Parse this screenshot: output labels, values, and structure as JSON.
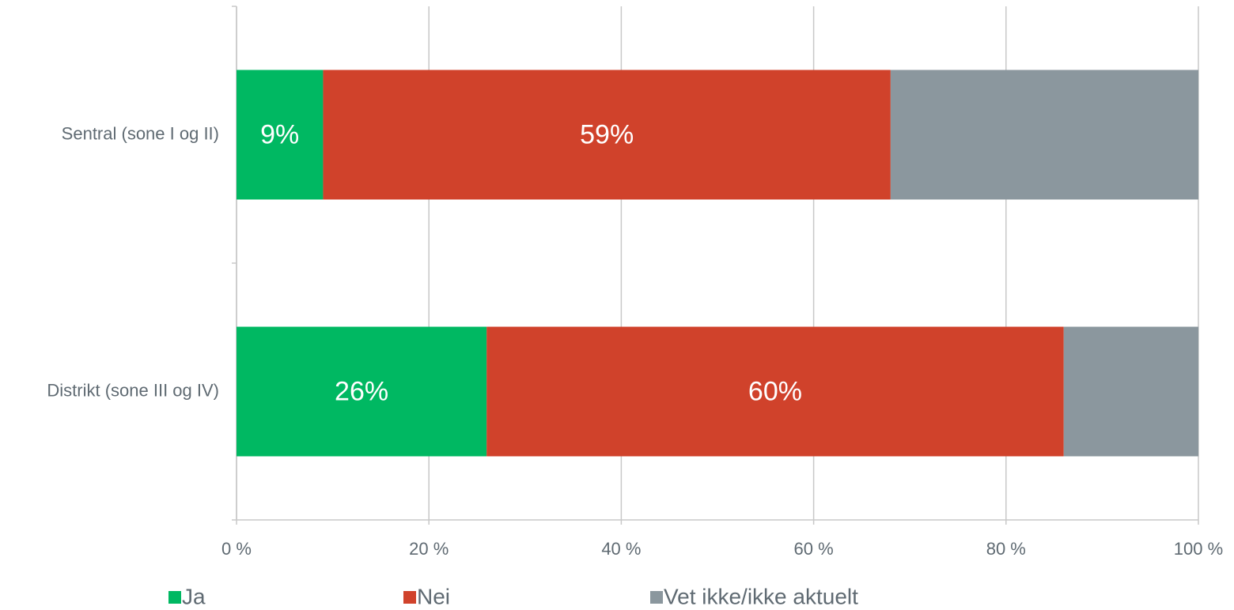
{
  "chart_data": {
    "type": "stacked-bar-horizontal",
    "categories": [
      "Sentral (sone I og II)",
      "Distrikt (sone III og IV)"
    ],
    "series": [
      {
        "name": "Ja",
        "color": "#00b862",
        "values": [
          9,
          26
        ],
        "value_labels": [
          "9%",
          "26%"
        ]
      },
      {
        "name": "Nei",
        "color": "#d0422b",
        "values": [
          59,
          60
        ],
        "value_labels": [
          "59%",
          "60%"
        ]
      },
      {
        "name": "Vet ikke/ikke aktuelt",
        "color": "#8b979e",
        "values": [
          32,
          14
        ]
      }
    ],
    "xlim": [
      0,
      100
    ],
    "xticks": [
      {
        "value": 0,
        "label": "0 %"
      },
      {
        "value": 20,
        "label": "20 %"
      },
      {
        "value": 40,
        "label": "40 %"
      },
      {
        "value": 60,
        "label": "60 %"
      },
      {
        "value": 80,
        "label": "80 %"
      },
      {
        "value": 100,
        "label": "100 %"
      }
    ],
    "grid": true,
    "legend": "bottom"
  }
}
